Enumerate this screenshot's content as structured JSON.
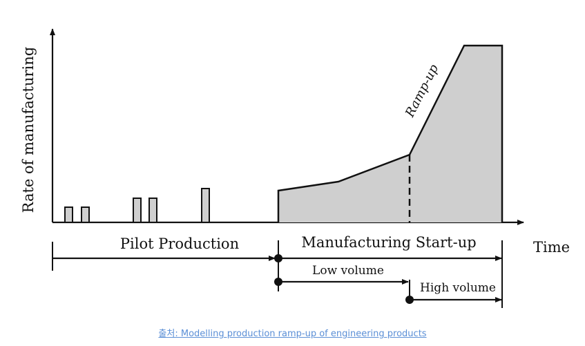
{
  "diagram": {
    "y_axis_label": "Rate of manufacturing",
    "x_axis_label": "Time",
    "curve_label": "Ramp-up",
    "phases": {
      "pilot": "Pilot Production",
      "startup": "Manufacturing Start-up",
      "low_volume": "Low volume",
      "high_volume": "High volume"
    },
    "pilot_batches": 5,
    "colors": {
      "fill": "#cfcfcf",
      "stroke": "#111111"
    }
  },
  "caption": "출처: Modelling production ramp-up of engineering products"
}
